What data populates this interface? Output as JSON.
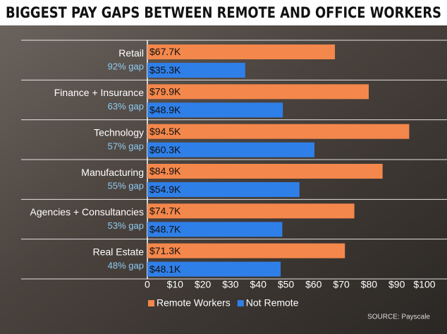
{
  "chart_data": {
    "type": "bar",
    "orientation": "horizontal",
    "title": "BIGGEST PAY GAPS BETWEEN REMOTE AND OFFICE WORKERS",
    "source": "SOURCE: Payscale",
    "categories": [
      "Retail",
      "Finance + Insurance",
      "Technology",
      "Manufacturing",
      "Agencies + Consultancies",
      "Real Estate"
    ],
    "category_notes": [
      "92% gap",
      "63% gap",
      "57% gap",
      "55% gap",
      "53% gap",
      "48% gap"
    ],
    "series": [
      {
        "name": "Remote Workers",
        "color": "#f4874b",
        "values": [
          67.7,
          79.9,
          94.5,
          84.9,
          74.7,
          71.3
        ],
        "value_labels": [
          "$67.7K",
          "$79.9K",
          "$94.5K",
          "$84.9K",
          "$74.7K",
          "$71.3K"
        ]
      },
      {
        "name": "Not Remote",
        "color": "#2f7fe8",
        "values": [
          35.3,
          48.9,
          60.3,
          54.9,
          48.7,
          48.1
        ],
        "value_labels": [
          "$35.3K",
          "$48.9K",
          "$60.3K",
          "$54.9K",
          "$48.7K",
          "$48.1K"
        ]
      }
    ],
    "xlim": [
      0,
      100
    ],
    "xticks": [
      0,
      {
        "value": 10,
        "label": "$10"
      },
      {
        "value": 20,
        "label": "$20"
      },
      {
        "value": 30,
        "label": "$30"
      },
      {
        "value": 40,
        "label": "$40"
      },
      {
        "value": 50,
        "label": "$50"
      },
      {
        "value": 60,
        "label": "$60"
      },
      {
        "value": 70,
        "label": "$70"
      },
      {
        "value": 80,
        "label": "$80"
      },
      {
        "value": 90,
        "label": "$90"
      },
      {
        "value": 100,
        "label": "$100"
      }
    ],
    "grid": false
  }
}
